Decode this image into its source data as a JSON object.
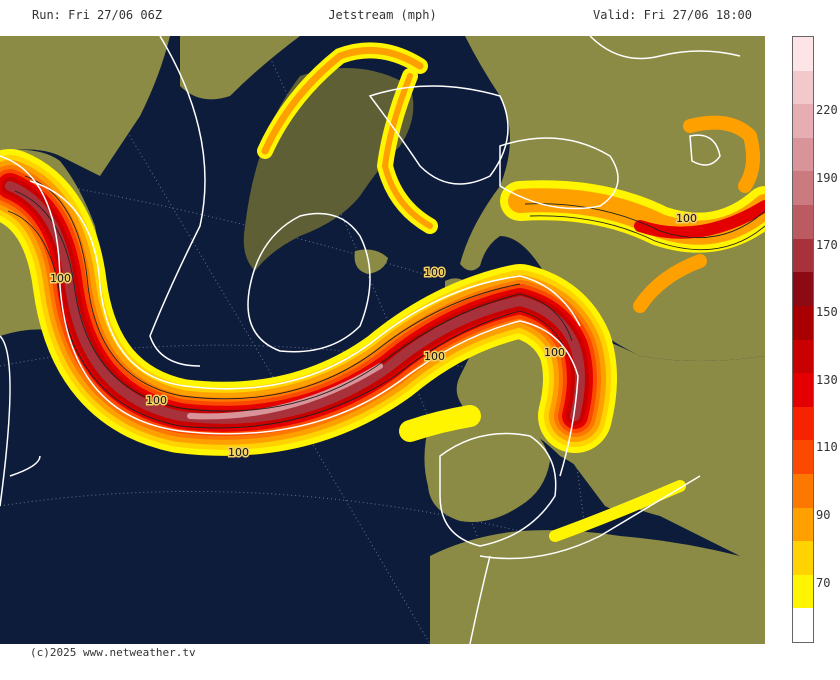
{
  "header": {
    "run": "Run: Fri 27/06 06Z",
    "title": "Jetstream (mph)",
    "valid": "Valid: Fri 27/06 18:00"
  },
  "footer": {
    "credit": "(c)2025 www.netweather.tv"
  },
  "map": {
    "contour_labels": [
      "100",
      "100",
      "100",
      "100",
      "100",
      "100",
      "100"
    ],
    "colors": {
      "ocean": "#0e1c3c",
      "land": "#8b8b45",
      "ice": "#5f5f36",
      "contour": "#ffffff"
    }
  },
  "legend": {
    "bands": [
      {
        "color": "#fde4e6"
      },
      {
        "color": "#f3c8cb"
      },
      {
        "color": "#e6aeb3"
      },
      {
        "color": "#d9949a"
      },
      {
        "color": "#cb7a80"
      },
      {
        "color": "#bc5a62"
      },
      {
        "color": "#a8323b"
      },
      {
        "color": "#8c0a14"
      },
      {
        "color": "#a80000"
      },
      {
        "color": "#c80000"
      },
      {
        "color": "#e40000"
      },
      {
        "color": "#f62200"
      },
      {
        "color": "#fb4a00"
      },
      {
        "color": "#fd7800"
      },
      {
        "color": "#fea000"
      },
      {
        "color": "#ffd200"
      },
      {
        "color": "#fff500"
      },
      {
        "color": "#ffffff"
      }
    ],
    "labels": [
      "220",
      "190",
      "170",
      "150",
      "130",
      "110",
      "90",
      "70"
    ]
  }
}
